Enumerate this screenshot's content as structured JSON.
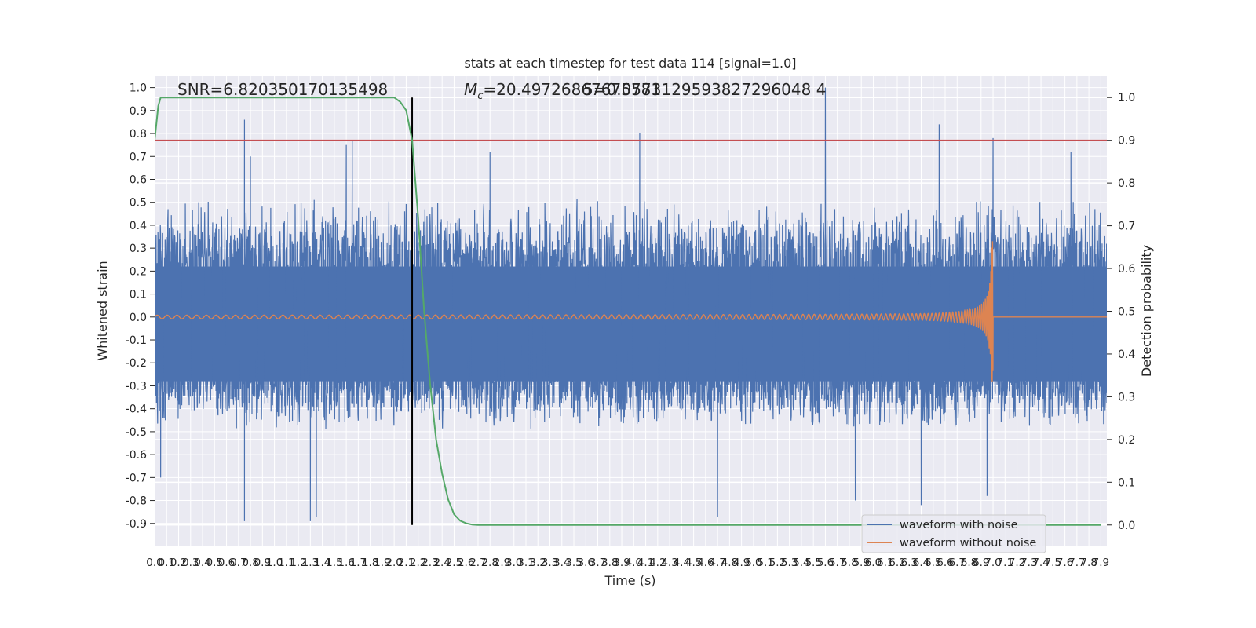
{
  "chart_data": {
    "type": "line",
    "title": "stats at each timestep for test data 114 [signal=1.0]",
    "xlabel": "Time (s)",
    "ylabel_left": "Whitened strain",
    "ylabel_right": "Detection probability",
    "xlim": [
      0.0,
      7.95
    ],
    "ylim_left": [
      -1.0,
      1.05
    ],
    "ylim_right": [
      -0.05,
      1.05
    ],
    "grid": true,
    "background": "#EAEAF2",
    "x_tick_step": 0.1,
    "x_tick_labels": [
      "0.0",
      "0.1",
      "0.2",
      "0.3",
      "0.4",
      "0.5",
      "0.6",
      "0.7",
      "0.8",
      "0.9",
      "1.0",
      "1.1",
      "1.2",
      "1.3",
      "1.4",
      "1.5",
      "1.6",
      "1.7",
      "1.8",
      "1.9",
      "2.0",
      "2.1",
      "2.2",
      "2.3",
      "2.4",
      "2.5",
      "2.6",
      "2.7",
      "2.8",
      "2.9",
      "3.0",
      "3.1",
      "3.2",
      "3.3",
      "3.4",
      "3.5",
      "3.6",
      "3.7",
      "3.8",
      "3.9",
      "4.0",
      "4.1",
      "4.2",
      "4.3",
      "4.4",
      "4.5",
      "4.6",
      "4.7",
      "4.8",
      "4.9",
      "5.0",
      "5.1",
      "5.2",
      "5.3",
      "5.4",
      "5.5",
      "5.6",
      "5.7",
      "5.8",
      "5.9",
      "6.0",
      "6.1",
      "6.2",
      "6.3",
      "6.4",
      "6.5",
      "6.6",
      "6.7",
      "6.8",
      "6.9",
      "7.0",
      "7.1",
      "7.2",
      "7.3",
      "7.4",
      "7.5",
      "7.6",
      "7.7",
      "7.8",
      "7.9"
    ],
    "y_left_ticks": [
      "1.0",
      "0.9",
      "0.8",
      "0.7",
      "0.6",
      "0.5",
      "0.4",
      "0.3",
      "0.2",
      "0.1",
      "0.0",
      "-0.1",
      "-0.2",
      "-0.3",
      "-0.4",
      "-0.5",
      "-0.6",
      "-0.7",
      "-0.8",
      "-0.9"
    ],
    "y_right_ticks": [
      "1.0",
      "0.9",
      "0.8",
      "0.7",
      "0.6",
      "0.5",
      "0.4",
      "0.3",
      "0.2",
      "0.1",
      "0.0"
    ],
    "annotations": {
      "snr": "SNR=6.820350170135498",
      "mc_symbol": "M",
      "mc_subscript": "c",
      "mc_value": "=20.49726867675781",
      "overlap": "5=0.0573129593827296048 4"
    },
    "threshold": {
      "value_right": 0.9,
      "color": "#C44E52"
    },
    "marker_line": {
      "x": 2.15,
      "color": "#000000"
    },
    "series": [
      {
        "name": "waveform with noise",
        "color": "#4C72B0",
        "envelope": {
          "core_top": 0.22,
          "core_bottom": -0.28,
          "typical_top": 0.45,
          "typical_bottom": -0.45
        },
        "spikes_up": [
          [
            0.0,
            0.98
          ],
          [
            0.75,
            0.86
          ],
          [
            0.8,
            0.7
          ],
          [
            1.6,
            0.75
          ],
          [
            1.65,
            0.77
          ],
          [
            2.8,
            0.72
          ],
          [
            4.05,
            0.8
          ],
          [
            5.6,
            1.0
          ],
          [
            6.55,
            0.84
          ],
          [
            7.0,
            0.78
          ],
          [
            7.65,
            0.72
          ]
        ],
        "spikes_down": [
          [
            0.05,
            -0.7
          ],
          [
            0.75,
            -0.89
          ],
          [
            1.3,
            -0.89
          ],
          [
            1.35,
            -0.87
          ],
          [
            4.7,
            -0.87
          ],
          [
            5.85,
            -0.8
          ],
          [
            6.4,
            -0.82
          ],
          [
            6.95,
            -0.78
          ]
        ]
      },
      {
        "name": "waveform without noise",
        "color": "#DD8452",
        "base_amplitude": 0.008,
        "merger_time": 7.0,
        "peak_amplitude": 0.33,
        "end_value": 0.0
      },
      {
        "name": "detection probability",
        "color": "#55A868",
        "axis": "right",
        "x": [
          0.0,
          0.03,
          0.05,
          0.1,
          0.2,
          0.5,
          1.0,
          1.5,
          2.0,
          2.05,
          2.1,
          2.15,
          2.2,
          2.25,
          2.3,
          2.35,
          2.4,
          2.45,
          2.5,
          2.55,
          2.6,
          2.65,
          2.7,
          2.8,
          3.0,
          4.0,
          5.0,
          6.0,
          7.0,
          7.9
        ],
        "y": [
          0.9,
          0.98,
          1.0,
          1.0,
          1.0,
          1.0,
          1.0,
          1.0,
          1.0,
          0.99,
          0.97,
          0.9,
          0.72,
          0.5,
          0.33,
          0.2,
          0.12,
          0.06,
          0.025,
          0.01,
          0.004,
          0.001,
          0.0,
          0.0,
          0.0,
          0.0,
          0.0,
          0.0,
          0.0,
          0.0
        ]
      }
    ],
    "legend": {
      "placement": "lower-right",
      "entries": [
        {
          "label": "waveform with noise",
          "color": "#4C72B0"
        },
        {
          "label": "waveform without noise",
          "color": "#DD8452"
        }
      ]
    }
  }
}
